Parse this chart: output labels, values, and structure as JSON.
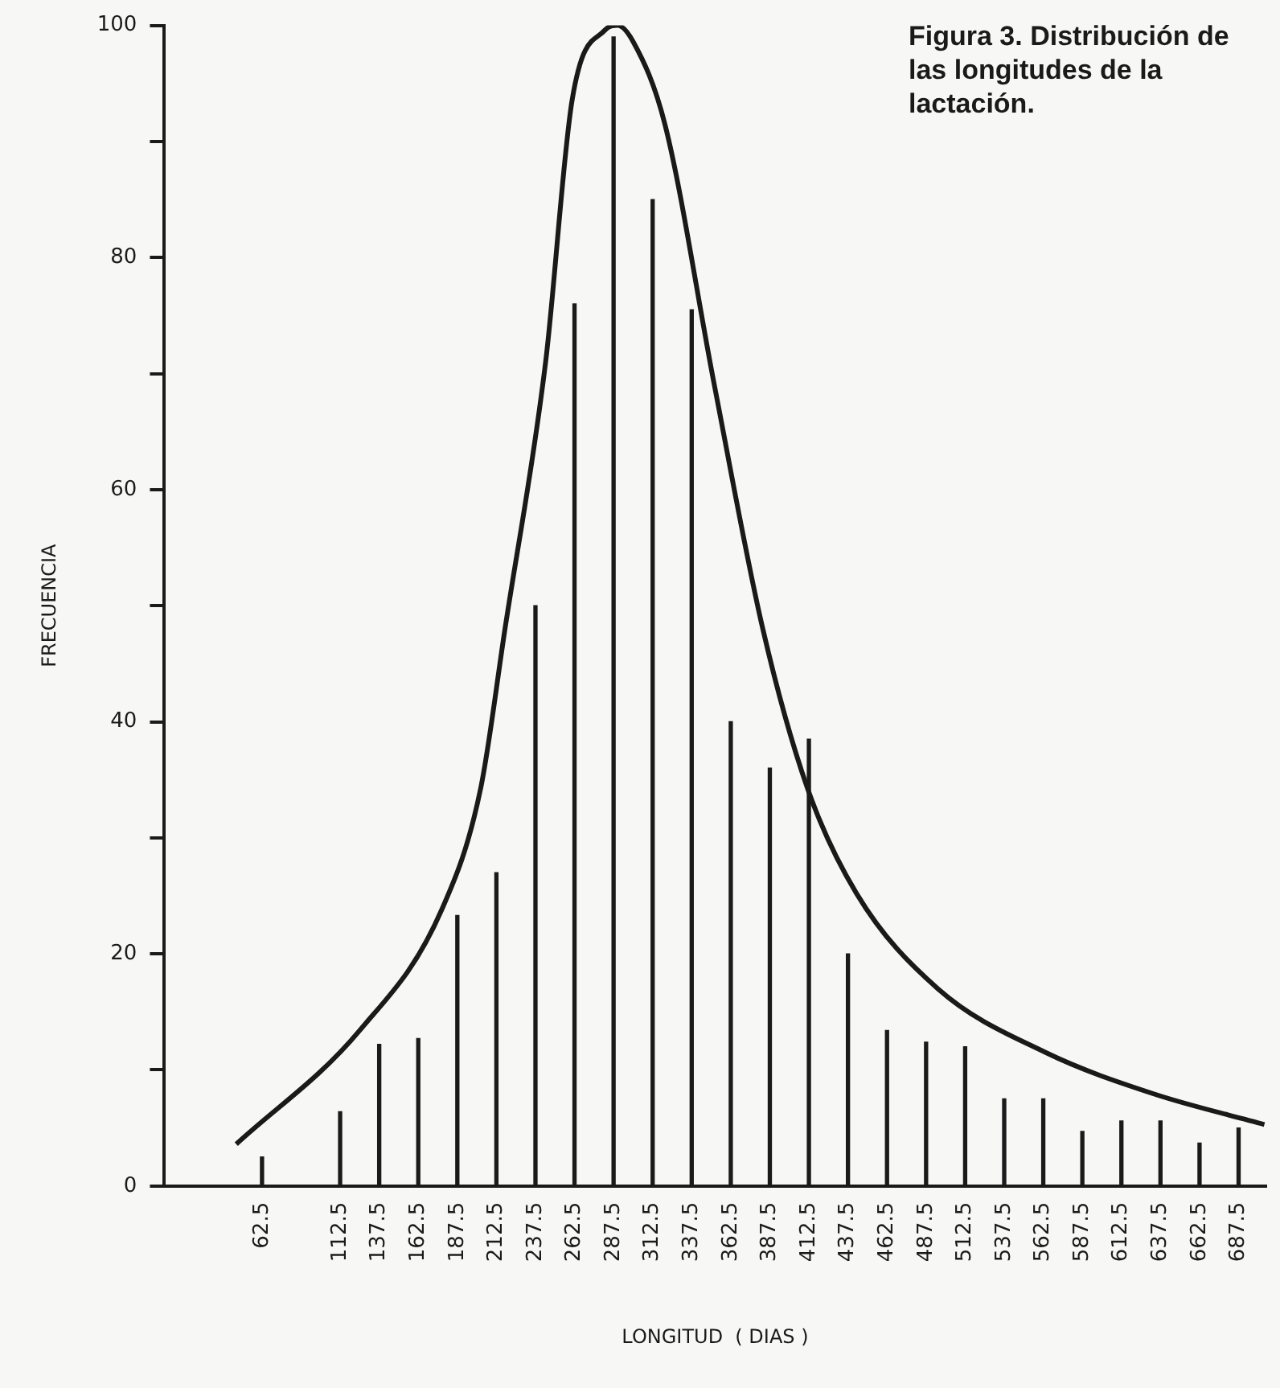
{
  "chart_data": {
    "type": "bar",
    "title": "Figura 3. Distribución de las longitudes de la lactación.",
    "xlabel": "LONGITUD  ( DIAS )",
    "ylabel": "FRECUENCIA",
    "x": [
      62.5,
      112.5,
      137.5,
      162.5,
      187.5,
      212.5,
      237.5,
      262.5,
      287.5,
      312.5,
      337.5,
      362.5,
      387.5,
      412.5,
      437.5,
      462.5,
      487.5,
      512.5,
      537.5,
      562.5,
      587.5,
      612.5,
      637.5,
      662.5,
      687.5
    ],
    "series": [
      {
        "color": "#1a1a1a",
        "values": [
          2.5,
          6.4,
          12.2,
          12.7,
          23.3,
          27,
          50,
          76,
          99,
          85,
          75.5,
          40,
          36,
          38.5,
          20,
          13.4,
          12.4,
          12,
          7.5,
          7.5,
          4.7,
          5.6,
          5.6,
          3.7,
          5
        ]
      },
      {
        "type": "line",
        "color": "#1a1a1a",
        "x": [
          46,
          125,
          177.5,
          202.5,
          218,
          244,
          261,
          282,
          290,
          300,
          320.5,
          352,
          383,
          411.5,
          443,
          495,
          564,
          634,
          704
        ],
        "values": [
          3.6,
          13.4,
          23.8,
          34.3,
          48,
          71,
          93.6,
          99.6,
          100,
          98.6,
          91.4,
          69,
          48,
          34.3,
          25.2,
          17,
          11.5,
          7.9,
          5.3
        ]
      }
    ],
    "xlim": [
      0,
      705
    ],
    "xticks": [
      62.5,
      112.5,
      137.5,
      162.5,
      187.5,
      212.5,
      237.5,
      262.5,
      287.5,
      312.5,
      337.5,
      362.5,
      387.5,
      412.5,
      437.5,
      462.5,
      487.5,
      512.5,
      537.5,
      562.5,
      587.5,
      612.5,
      637.5,
      662.5,
      687.5
    ],
    "ylim": [
      0,
      100
    ],
    "yticks": [
      0,
      {
        "value": 10,
        "label": null
      },
      20,
      {
        "value": 30,
        "label": null
      },
      40,
      {
        "value": 50,
        "label": null
      },
      60,
      {
        "value": 70,
        "label": null
      },
      80,
      {
        "value": 90,
        "label": null
      },
      100
    ],
    "grid": false,
    "legend": false,
    "marker": "none",
    "line_style": "solid"
  }
}
